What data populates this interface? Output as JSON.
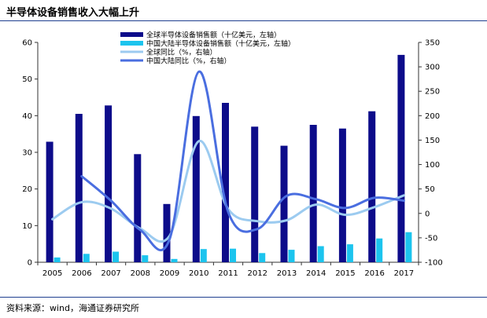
{
  "source": "资料来源：wind，海通证券研究所",
  "chart_data": {
    "type": "bar",
    "title": "半导体设备销售收入大幅上升",
    "categories": [
      "2005",
      "2006",
      "2007",
      "2008",
      "2009",
      "2010",
      "2011",
      "2012",
      "2013",
      "2014",
      "2015",
      "2016",
      "2017"
    ],
    "series": [
      {
        "name": "全球半导体设备销售额（十亿美元，左轴）",
        "type": "bar",
        "axis": "left",
        "color": "#0d0c8a",
        "values": [
          32.9,
          40.5,
          42.8,
          29.5,
          15.9,
          39.9,
          43.5,
          37.0,
          31.8,
          37.5,
          36.5,
          41.2,
          56.6
        ]
      },
      {
        "name": "中国大陆半导体设备销售额（十亿美元，左轴）",
        "type": "bar",
        "axis": "left",
        "color": "#1cc4ee",
        "values": [
          1.3,
          2.3,
          2.9,
          1.9,
          0.9,
          3.6,
          3.7,
          2.5,
          3.4,
          4.4,
          4.9,
          6.5,
          8.2
        ]
      },
      {
        "name": "全球同比（%，右轴）",
        "type": "line",
        "axis": "right",
        "color": "#9ccbf0",
        "values": [
          -12,
          23,
          10,
          -31,
          -46,
          148,
          9,
          -16,
          -14,
          18,
          -3,
          13,
          37
        ]
      },
      {
        "name": "中国大陆同比（%，右轴）",
        "type": "line",
        "axis": "right",
        "color": "#4a6ee0",
        "values": [
          null,
          76,
          26,
          -34,
          -53,
          290,
          3,
          -32,
          36,
          29,
          11,
          32,
          26
        ]
      }
    ],
    "y_left": {
      "range": [
        0,
        60
      ],
      "ticks": [
        0,
        10,
        20,
        30,
        40,
        50,
        60
      ]
    },
    "y_right": {
      "range": [
        -100,
        350
      ],
      "ticks": [
        -100,
        -50,
        0,
        50,
        100,
        150,
        200,
        250,
        300,
        350
      ]
    },
    "xlabel": "",
    "ylabel": "",
    "grid": false,
    "legend_position": "top-center",
    "axis_color": "#333333"
  }
}
